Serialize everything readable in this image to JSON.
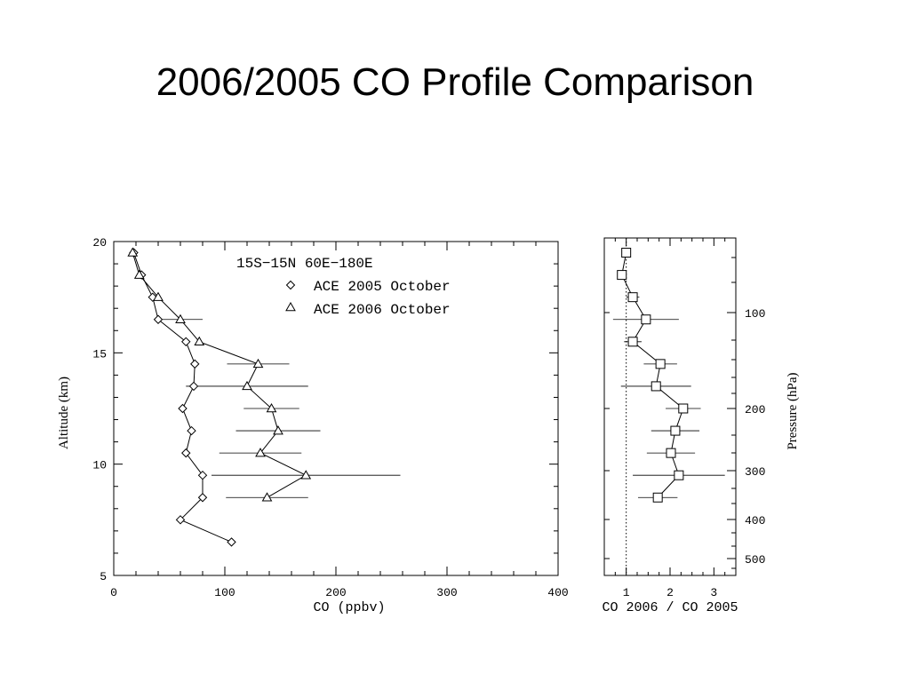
{
  "slide": {
    "title": "2006/2005 CO Profile Comparison"
  },
  "chart_data": [
    {
      "type": "line",
      "annotation": "15S−15N   60E−180E",
      "xlabel": "CO (ppbv)",
      "ylabel": "Altitude (km)",
      "xlim": [
        0,
        400
      ],
      "ylim": [
        5,
        20
      ],
      "x_ticks": [
        "0",
        "100",
        "200",
        "300",
        "400"
      ],
      "y_ticks": [
        "5",
        "10",
        "15",
        "20"
      ],
      "grid": false,
      "legend_position": "top-right",
      "series": [
        {
          "name": "ACE 2005 October",
          "marker": "diamond",
          "points": [
            {
              "alt": 19.5,
              "co": 18
            },
            {
              "alt": 18.5,
              "co": 25
            },
            {
              "alt": 17.5,
              "co": 35
            },
            {
              "alt": 16.5,
              "co": 40
            },
            {
              "alt": 15.5,
              "co": 65
            },
            {
              "alt": 14.5,
              "co": 73
            },
            {
              "alt": 13.5,
              "co": 72
            },
            {
              "alt": 12.5,
              "co": 62
            },
            {
              "alt": 11.5,
              "co": 70
            },
            {
              "alt": 10.5,
              "co": 65
            },
            {
              "alt": 9.5,
              "co": 80
            },
            {
              "alt": 8.5,
              "co": 80
            },
            {
              "alt": 7.5,
              "co": 60
            },
            {
              "alt": 6.5,
              "co": 106
            }
          ]
        },
        {
          "name": "ACE 2006 October",
          "marker": "triangle",
          "points": [
            {
              "alt": 19.5,
              "co": 17,
              "err": 0
            },
            {
              "alt": 18.5,
              "co": 23,
              "err": 0
            },
            {
              "alt": 17.5,
              "co": 40,
              "err": 0
            },
            {
              "alt": 16.5,
              "co": 60,
              "err": 20
            },
            {
              "alt": 15.5,
              "co": 77,
              "err": 0
            },
            {
              "alt": 14.5,
              "co": 130,
              "err": 28
            },
            {
              "alt": 13.5,
              "co": 120,
              "err": 55
            },
            {
              "alt": 12.5,
              "co": 142,
              "err": 25
            },
            {
              "alt": 11.5,
              "co": 148,
              "err": 38
            },
            {
              "alt": 10.5,
              "co": 132,
              "err": 37
            },
            {
              "alt": 9.5,
              "co": 173,
              "err": 85
            },
            {
              "alt": 8.5,
              "co": 138,
              "err": 37
            }
          ]
        }
      ]
    },
    {
      "type": "line",
      "xlabel": "CO 2006 / CO 2005",
      "ylabel": "Pressure (hPa)",
      "xlim": [
        0.5,
        3.5
      ],
      "x_ticks": [
        "1",
        "2",
        "3"
      ],
      "pressure_ticks": [
        "100",
        "200",
        "300",
        "400",
        "500"
      ],
      "reference_line": 1,
      "grid": false,
      "series": [
        {
          "name": "",
          "marker": "square",
          "points": [
            {
              "alt": 19.5,
              "ratio": 1.0,
              "err": 0
            },
            {
              "alt": 18.5,
              "ratio": 0.9,
              "err": 0
            },
            {
              "alt": 17.5,
              "ratio": 1.15,
              "err": 0.15
            },
            {
              "alt": 16.5,
              "ratio": 1.45,
              "err": 0.75
            },
            {
              "alt": 15.5,
              "ratio": 1.15,
              "err": 0.2
            },
            {
              "alt": 14.5,
              "ratio": 1.78,
              "err": 0.38
            },
            {
              "alt": 13.5,
              "ratio": 1.68,
              "err": 0.8
            },
            {
              "alt": 12.5,
              "ratio": 2.3,
              "err": 0.4
            },
            {
              "alt": 11.5,
              "ratio": 2.12,
              "err": 0.55
            },
            {
              "alt": 10.5,
              "ratio": 2.02,
              "err": 0.55
            },
            {
              "alt": 9.5,
              "ratio": 2.2,
              "err": 1.05
            },
            {
              "alt": 8.5,
              "ratio": 1.72,
              "err": 0.45
            }
          ]
        }
      ]
    }
  ]
}
